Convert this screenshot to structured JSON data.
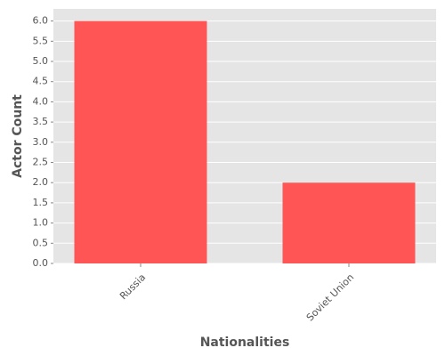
{
  "chart_data": {
    "type": "bar",
    "x_label": "Nationalities",
    "y_label": "Actor Count",
    "categories": [
      "Russia",
      "Soviet Union"
    ],
    "values": [
      6,
      2
    ],
    "color": "#ff5555",
    "ylim": [
      0,
      6.3
    ],
    "yticks": [
      {
        "value": 0,
        "label": "0.0"
      },
      0.5,
      {
        "value": 1,
        "label": "1.0"
      },
      1.5,
      {
        "value": 2,
        "label": "2.0"
      },
      2.5,
      {
        "value": 3,
        "label": "3.0"
      },
      3.5,
      {
        "value": 4,
        "label": "4.0"
      },
      4.5,
      {
        "value": 5,
        "label": "5.0"
      },
      5.5,
      {
        "value": 6,
        "label": "6.0"
      }
    ],
    "grid": true
  }
}
